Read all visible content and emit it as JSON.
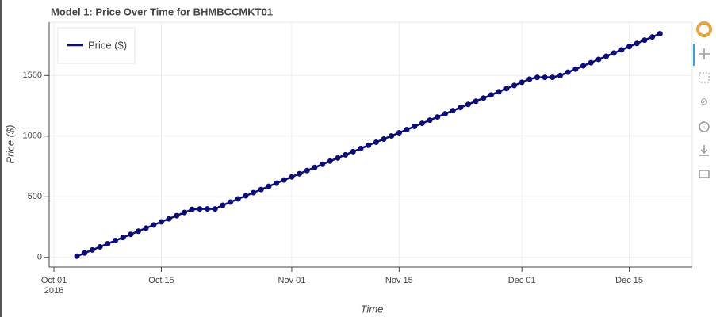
{
  "chart_data": {
    "type": "line",
    "title": "Model 1: Price Over Time for BHMBCCMKT01",
    "x_label": "Time",
    "y_label": "Price ($)",
    "x": [
      "2016-10-04",
      "2016-10-05",
      "2016-10-06",
      "2016-10-07",
      "2016-10-08",
      "2016-10-09",
      "2016-10-10",
      "2016-10-11",
      "2016-10-12",
      "2016-10-13",
      "2016-10-14",
      "2016-10-15",
      "2016-10-16",
      "2016-10-17",
      "2016-10-18",
      "2016-10-19",
      "2016-10-20",
      "2016-10-21",
      "2016-10-22",
      "2016-10-23",
      "2016-10-24",
      "2016-10-25",
      "2016-10-26",
      "2016-10-27",
      "2016-10-28",
      "2016-10-29",
      "2016-10-30",
      "2016-10-31",
      "2016-11-01",
      "2016-11-02",
      "2016-11-03",
      "2016-11-04",
      "2016-11-05",
      "2016-11-06",
      "2016-11-07",
      "2016-11-08",
      "2016-11-09",
      "2016-11-10",
      "2016-11-11",
      "2016-11-12",
      "2016-11-13",
      "2016-11-14",
      "2016-11-15",
      "2016-11-16",
      "2016-11-17",
      "2016-11-18",
      "2016-11-19",
      "2016-11-20",
      "2016-11-21",
      "2016-11-22",
      "2016-11-23",
      "2016-11-24",
      "2016-11-25",
      "2016-11-26",
      "2016-11-27",
      "2016-11-28",
      "2016-11-29",
      "2016-11-30",
      "2016-12-01",
      "2016-12-02",
      "2016-12-03",
      "2016-12-04",
      "2016-12-05",
      "2016-12-06",
      "2016-12-07",
      "2016-12-08",
      "2016-12-09",
      "2016-12-10",
      "2016-12-11",
      "2016-12-12",
      "2016-12-13",
      "2016-12-14",
      "2016-12-15",
      "2016-12-16",
      "2016-12-17",
      "2016-12-18",
      "2016-12-19"
    ],
    "series": [
      {
        "name": "Price ($)",
        "color": "#0c0c78",
        "values": [
          10,
          36,
          61,
          87,
          113,
          139,
          164,
          190,
          216,
          241,
          267,
          293,
          318,
          344,
          370,
          396,
          400,
          400,
          400,
          430,
          456,
          482,
          508,
          534,
          560,
          586,
          612,
          638,
          664,
          690,
          716,
          742,
          768,
          794,
          820,
          846,
          872,
          898,
          924,
          950,
          976,
          1002,
          1028,
          1054,
          1080,
          1106,
          1132,
          1158,
          1184,
          1210,
          1236,
          1262,
          1288,
          1314,
          1340,
          1366,
          1392,
          1418,
          1444,
          1470,
          1485,
          1485,
          1485,
          1500,
          1527,
          1553,
          1580,
          1606,
          1633,
          1659,
          1686,
          1712,
          1739,
          1765,
          1792,
          1818,
          1845
        ]
      }
    ],
    "xlim": [
      "2016-09-30T09:00",
      "2016-12-23T05:00"
    ],
    "xticks": [
      {
        "value": "2016-10-01",
        "label": "Oct 01\n2016"
      },
      {
        "value": "2016-10-15",
        "label": "Oct 15"
      },
      {
        "value": "2016-11-01",
        "label": "Nov 01"
      },
      {
        "value": "2016-11-15",
        "label": "Nov 15"
      },
      {
        "value": "2016-12-01",
        "label": "Dec 01"
      },
      {
        "value": "2016-12-15",
        "label": "Dec 15"
      }
    ],
    "ylim": [
      -80,
      1940
    ],
    "yticks": [
      0,
      500,
      1000,
      1500
    ],
    "grid": true,
    "legend": "top-left"
  }
}
